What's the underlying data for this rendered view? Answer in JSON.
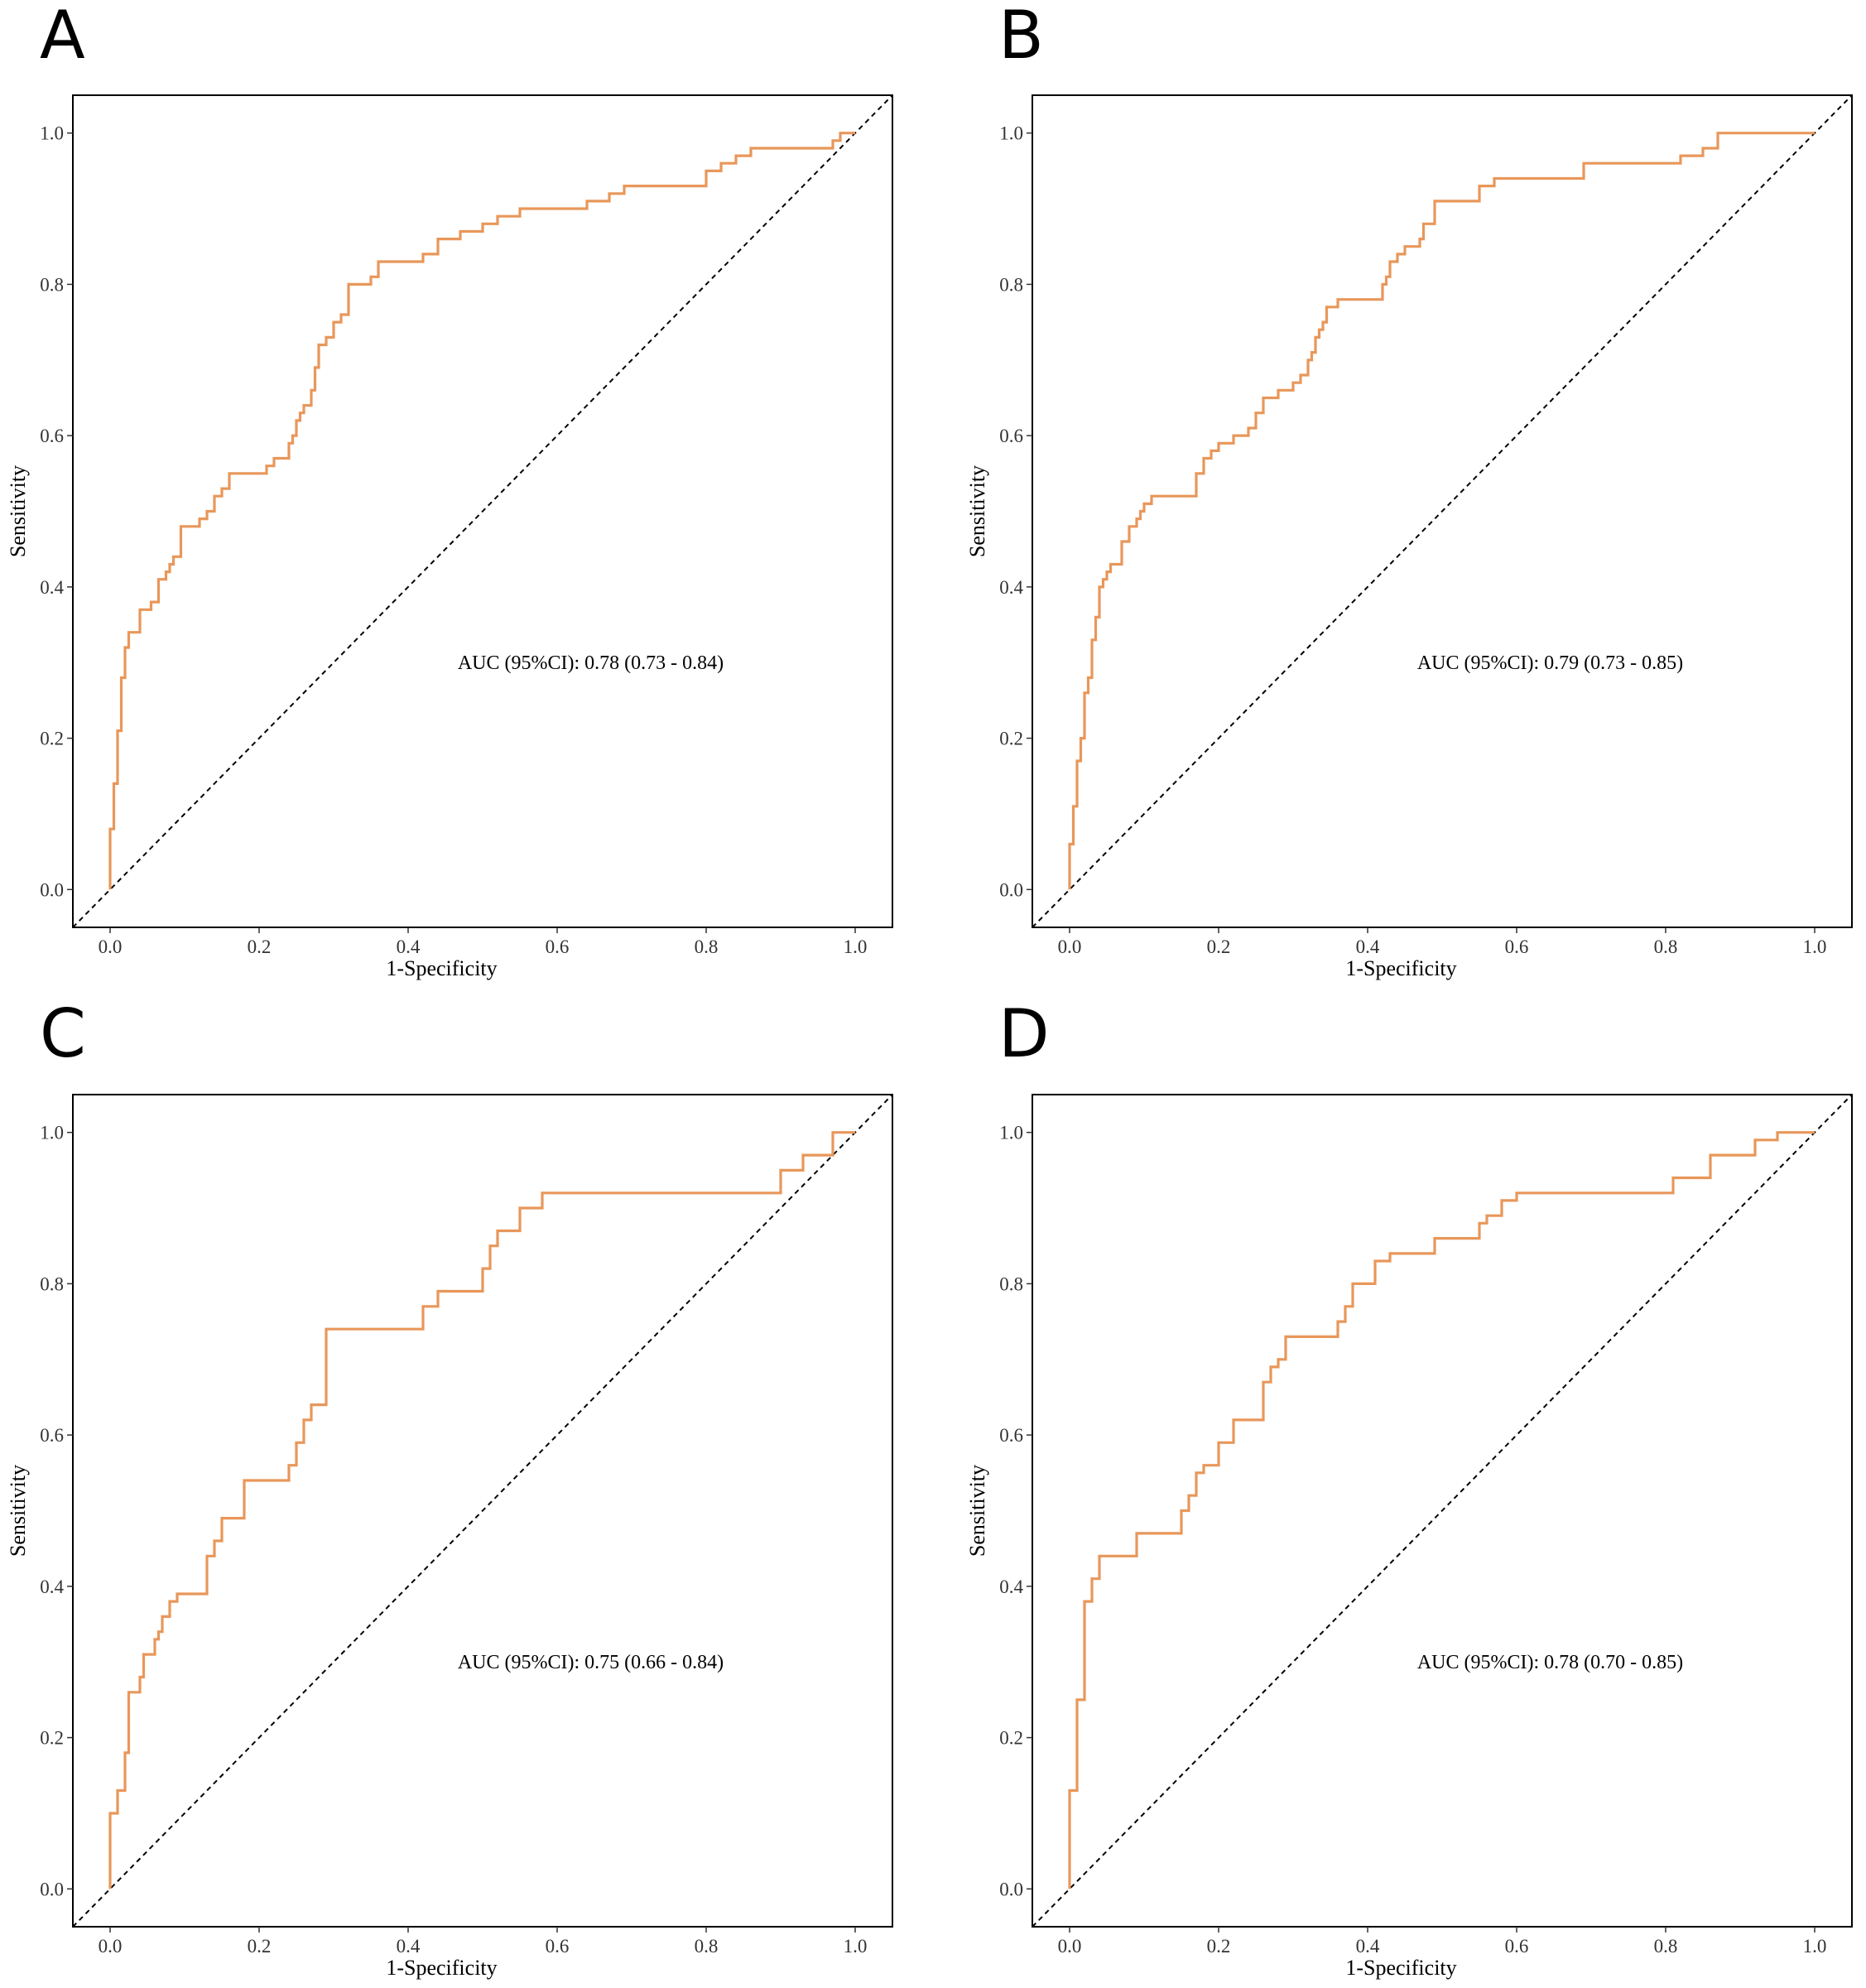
{
  "chart_data": [
    {
      "panel": "A",
      "type": "line",
      "xlabel": "1-Specificity",
      "ylabel": "Sensitivity",
      "xlim": [
        -0.05,
        1.05
      ],
      "ylim": [
        -0.05,
        1.05
      ],
      "xticks": [
        "0.0",
        "0.2",
        "0.4",
        "0.6",
        "0.8",
        "1.0"
      ],
      "yticks": [
        "0.0",
        "0.2",
        "0.4",
        "0.6",
        "0.8",
        "1.0"
      ],
      "annotation": "AUC (95%CI): 0.78 (0.73 - 0.84)",
      "reference_line": "diagonal (dashed)",
      "x": [
        0,
        0,
        0.005,
        0.005,
        0.01,
        0.01,
        0.015,
        0.015,
        0.02,
        0.02,
        0.025,
        0.025,
        0.04,
        0.04,
        0.055,
        0.055,
        0.065,
        0.065,
        0.075,
        0.075,
        0.08,
        0.08,
        0.085,
        0.085,
        0.095,
        0.095,
        0.12,
        0.12,
        0.13,
        0.13,
        0.14,
        0.14,
        0.15,
        0.15,
        0.16,
        0.16,
        0.2,
        0.21,
        0.21,
        0.22,
        0.22,
        0.24,
        0.24,
        0.245,
        0.245,
        0.25,
        0.25,
        0.255,
        0.255,
        0.26,
        0.26,
        0.27,
        0.27,
        0.275,
        0.275,
        0.28,
        0.28,
        0.29,
        0.29,
        0.3,
        0.3,
        0.31,
        0.31,
        0.32,
        0.32,
        0.35,
        0.35,
        0.36,
        0.36,
        0.42,
        0.42,
        0.44,
        0.44,
        0.47,
        0.47,
        0.5,
        0.5,
        0.52,
        0.52,
        0.55,
        0.55,
        0.62,
        0.64,
        0.64,
        0.67,
        0.67,
        0.69,
        0.69,
        0.8,
        0.8,
        0.82,
        0.82,
        0.84,
        0.84,
        0.86,
        0.86,
        0.88,
        0.88,
        0.97,
        0.97,
        0.98,
        0.98,
        1.0
      ],
      "y": [
        0,
        0.08,
        0.08,
        0.14,
        0.14,
        0.21,
        0.21,
        0.28,
        0.28,
        0.32,
        0.32,
        0.34,
        0.34,
        0.37,
        0.37,
        0.38,
        0.38,
        0.41,
        0.41,
        0.42,
        0.42,
        0.43,
        0.43,
        0.44,
        0.44,
        0.48,
        0.48,
        0.49,
        0.49,
        0.5,
        0.5,
        0.52,
        0.52,
        0.53,
        0.53,
        0.55,
        0.55,
        0.55,
        0.56,
        0.56,
        0.57,
        0.57,
        0.59,
        0.59,
        0.6,
        0.6,
        0.62,
        0.62,
        0.63,
        0.63,
        0.64,
        0.64,
        0.66,
        0.66,
        0.69,
        0.69,
        0.72,
        0.72,
        0.73,
        0.73,
        0.75,
        0.75,
        0.76,
        0.76,
        0.8,
        0.8,
        0.81,
        0.81,
        0.83,
        0.83,
        0.84,
        0.84,
        0.86,
        0.86,
        0.87,
        0.87,
        0.88,
        0.88,
        0.89,
        0.89,
        0.9,
        0.9,
        0.9,
        0.91,
        0.91,
        0.92,
        0.92,
        0.93,
        0.93,
        0.95,
        0.95,
        0.96,
        0.96,
        0.97,
        0.97,
        0.98,
        0.98,
        0.98,
        0.98,
        0.99,
        0.99,
        1.0,
        1.0
      ]
    },
    {
      "panel": "B",
      "type": "line",
      "xlabel": "1-Specificity",
      "ylabel": "Sensitivity",
      "xlim": [
        -0.05,
        1.05
      ],
      "ylim": [
        -0.05,
        1.05
      ],
      "xticks": [
        "0.0",
        "0.2",
        "0.4",
        "0.6",
        "0.8",
        "1.0"
      ],
      "yticks": [
        "0.0",
        "0.2",
        "0.4",
        "0.6",
        "0.8",
        "1.0"
      ],
      "annotation": "AUC (95%CI): 0.79 (0.73 - 0.85)",
      "reference_line": "diagonal (dashed)",
      "x": [
        0,
        0,
        0.005,
        0.005,
        0.01,
        0.01,
        0.015,
        0.015,
        0.02,
        0.02,
        0.025,
        0.025,
        0.03,
        0.03,
        0.035,
        0.035,
        0.04,
        0.04,
        0.045,
        0.045,
        0.05,
        0.05,
        0.055,
        0.055,
        0.07,
        0.07,
        0.08,
        0.08,
        0.09,
        0.09,
        0.095,
        0.095,
        0.1,
        0.1,
        0.11,
        0.11,
        0.17,
        0.17,
        0.18,
        0.18,
        0.19,
        0.19,
        0.2,
        0.2,
        0.22,
        0.22,
        0.24,
        0.24,
        0.25,
        0.25,
        0.26,
        0.26,
        0.28,
        0.28,
        0.3,
        0.3,
        0.31,
        0.31,
        0.32,
        0.32,
        0.325,
        0.325,
        0.33,
        0.33,
        0.335,
        0.335,
        0.34,
        0.34,
        0.345,
        0.345,
        0.36,
        0.36,
        0.42,
        0.42,
        0.425,
        0.425,
        0.43,
        0.43,
        0.44,
        0.44,
        0.45,
        0.45,
        0.47,
        0.47,
        0.475,
        0.475,
        0.49,
        0.49,
        0.55,
        0.55,
        0.57,
        0.57,
        0.69,
        0.69,
        0.82,
        0.82,
        0.85,
        0.85,
        0.87,
        0.87,
        1.0
      ],
      "y": [
        0,
        0.06,
        0.06,
        0.11,
        0.11,
        0.17,
        0.17,
        0.2,
        0.2,
        0.26,
        0.26,
        0.28,
        0.28,
        0.33,
        0.33,
        0.36,
        0.36,
        0.4,
        0.4,
        0.41,
        0.41,
        0.42,
        0.42,
        0.43,
        0.43,
        0.46,
        0.46,
        0.48,
        0.48,
        0.49,
        0.49,
        0.5,
        0.5,
        0.51,
        0.51,
        0.52,
        0.52,
        0.55,
        0.55,
        0.57,
        0.57,
        0.58,
        0.58,
        0.59,
        0.59,
        0.6,
        0.6,
        0.61,
        0.61,
        0.63,
        0.63,
        0.65,
        0.65,
        0.66,
        0.66,
        0.67,
        0.67,
        0.68,
        0.68,
        0.7,
        0.7,
        0.71,
        0.71,
        0.73,
        0.73,
        0.74,
        0.74,
        0.75,
        0.75,
        0.77,
        0.77,
        0.78,
        0.78,
        0.8,
        0.8,
        0.81,
        0.81,
        0.83,
        0.83,
        0.84,
        0.84,
        0.85,
        0.85,
        0.86,
        0.86,
        0.88,
        0.88,
        0.91,
        0.91,
        0.93,
        0.93,
        0.94,
        0.94,
        0.96,
        0.96,
        0.97,
        0.97,
        0.98,
        0.98,
        1.0,
        1.0
      ]
    },
    {
      "panel": "C",
      "type": "line",
      "xlabel": "1-Specificity",
      "ylabel": "Sensitivity",
      "xlim": [
        -0.05,
        1.05
      ],
      "ylim": [
        -0.05,
        1.05
      ],
      "xticks": [
        "0.0",
        "0.2",
        "0.4",
        "0.6",
        "0.8",
        "1.0"
      ],
      "yticks": [
        "0.0",
        "0.2",
        "0.4",
        "0.6",
        "0.8",
        "1.0"
      ],
      "annotation": "AUC (95%CI): 0.75 (0.66 - 0.84)",
      "reference_line": "diagonal (dashed)",
      "x": [
        0,
        0,
        0.01,
        0.01,
        0.02,
        0.02,
        0.025,
        0.025,
        0.04,
        0.04,
        0.045,
        0.045,
        0.06,
        0.06,
        0.065,
        0.065,
        0.07,
        0.07,
        0.08,
        0.08,
        0.09,
        0.09,
        0.13,
        0.13,
        0.14,
        0.14,
        0.15,
        0.15,
        0.18,
        0.18,
        0.24,
        0.24,
        0.25,
        0.25,
        0.26,
        0.26,
        0.27,
        0.27,
        0.29,
        0.29,
        0.42,
        0.42,
        0.44,
        0.44,
        0.5,
        0.5,
        0.51,
        0.51,
        0.52,
        0.52,
        0.55,
        0.55,
        0.58,
        0.58,
        0.9,
        0.9,
        0.93,
        0.93,
        0.97,
        0.97,
        1.0
      ],
      "y": [
        0,
        0.1,
        0.1,
        0.13,
        0.13,
        0.18,
        0.18,
        0.26,
        0.26,
        0.28,
        0.28,
        0.31,
        0.31,
        0.33,
        0.33,
        0.34,
        0.34,
        0.36,
        0.36,
        0.38,
        0.38,
        0.39,
        0.39,
        0.44,
        0.44,
        0.46,
        0.46,
        0.49,
        0.49,
        0.54,
        0.54,
        0.56,
        0.56,
        0.59,
        0.59,
        0.62,
        0.62,
        0.64,
        0.64,
        0.74,
        0.74,
        0.77,
        0.77,
        0.79,
        0.79,
        0.82,
        0.82,
        0.85,
        0.85,
        0.87,
        0.87,
        0.9,
        0.9,
        0.92,
        0.92,
        0.95,
        0.95,
        0.97,
        0.97,
        1.0,
        1.0
      ]
    },
    {
      "panel": "D",
      "type": "line",
      "xlabel": "1-Specificity",
      "ylabel": "Sensitivity",
      "xlim": [
        -0.05,
        1.05
      ],
      "ylim": [
        -0.05,
        1.05
      ],
      "xticks": [
        "0.0",
        "0.2",
        "0.4",
        "0.6",
        "0.8",
        "1.0"
      ],
      "yticks": [
        "0.0",
        "0.2",
        "0.4",
        "0.6",
        "0.8",
        "1.0"
      ],
      "annotation": "AUC (95%CI): 0.78 (0.70 - 0.85)",
      "reference_line": "diagonal (dashed)",
      "x": [
        0,
        0,
        0.01,
        0.01,
        0.02,
        0.02,
        0.03,
        0.03,
        0.04,
        0.04,
        0.09,
        0.09,
        0.15,
        0.15,
        0.16,
        0.16,
        0.17,
        0.17,
        0.18,
        0.18,
        0.2,
        0.2,
        0.22,
        0.22,
        0.26,
        0.26,
        0.27,
        0.27,
        0.28,
        0.28,
        0.29,
        0.29,
        0.36,
        0.36,
        0.37,
        0.37,
        0.38,
        0.38,
        0.41,
        0.41,
        0.43,
        0.43,
        0.49,
        0.49,
        0.55,
        0.55,
        0.56,
        0.56,
        0.58,
        0.58,
        0.6,
        0.6,
        0.81,
        0.81,
        0.86,
        0.86,
        0.92,
        0.92,
        0.95,
        0.95,
        1.0
      ],
      "y": [
        0,
        0.13,
        0.13,
        0.25,
        0.25,
        0.38,
        0.38,
        0.41,
        0.41,
        0.44,
        0.44,
        0.47,
        0.47,
        0.5,
        0.5,
        0.52,
        0.52,
        0.55,
        0.55,
        0.56,
        0.56,
        0.59,
        0.59,
        0.62,
        0.62,
        0.67,
        0.67,
        0.69,
        0.69,
        0.7,
        0.7,
        0.73,
        0.73,
        0.75,
        0.75,
        0.77,
        0.77,
        0.8,
        0.8,
        0.83,
        0.83,
        0.84,
        0.84,
        0.86,
        0.86,
        0.88,
        0.88,
        0.89,
        0.89,
        0.91,
        0.91,
        0.92,
        0.92,
        0.94,
        0.94,
        0.97,
        0.97,
        0.99,
        0.99,
        1.0,
        1.0
      ]
    }
  ]
}
